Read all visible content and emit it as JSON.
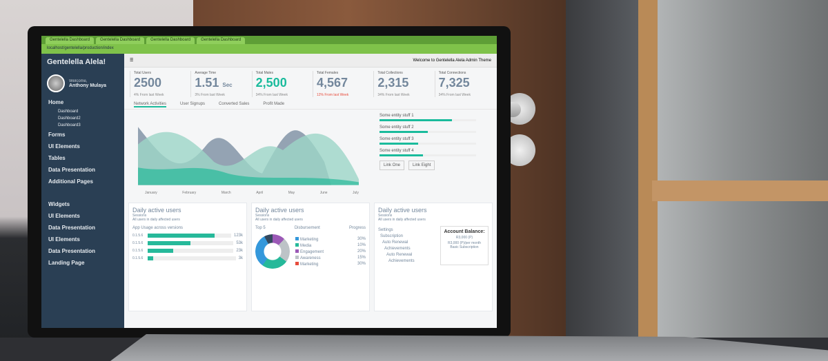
{
  "browser": {
    "url": "localhost/gentelella/production/index",
    "tabs": [
      "Gentelella Dashboard",
      "Gentelella Dashboard",
      "Gentelella Dashboard",
      "Gentelella Dashboard"
    ]
  },
  "sidebar": {
    "brand": "Gentelella Alela!",
    "welcome": "Welcome,",
    "user": "Anthony Mulaya",
    "items": [
      {
        "label": "Home"
      },
      {
        "label": "Dashboard"
      },
      {
        "label": "Dashboard2"
      },
      {
        "label": "Dashboard3"
      },
      {
        "label": "Forms"
      },
      {
        "label": "UI Elements"
      },
      {
        "label": "Tables"
      },
      {
        "label": "Data Presentation"
      },
      {
        "label": "Additional Pages"
      },
      {
        "label": "Widgets"
      },
      {
        "label": "UI Elements"
      },
      {
        "label": "Data Presentation"
      },
      {
        "label": "UI Elements"
      },
      {
        "label": "Data Presentation"
      },
      {
        "label": "Landing Page"
      }
    ]
  },
  "topbar": {
    "welcome": "Welcome to Gentelella Alela Admin Theme"
  },
  "stats": [
    {
      "label": "Total Users",
      "value": "2500",
      "unit": "",
      "change": "4% From last Week"
    },
    {
      "label": "Average Time",
      "value": "1.51",
      "unit": "Sec",
      "change": "3% From last Week"
    },
    {
      "label": "Total Males",
      "value": "2,500",
      "unit": "",
      "change": "34% From last Week"
    },
    {
      "label": "Total Females",
      "value": "4,567",
      "unit": "",
      "change": "12% From last Week"
    },
    {
      "label": "Total Collections",
      "value": "2,315",
      "unit": "",
      "change": "34% From last Week"
    },
    {
      "label": "Total Connections",
      "value": "7,325",
      "unit": "",
      "change": "34% From last Week"
    }
  ],
  "tabs": [
    "Network Activities",
    "User Signups",
    "Converted Sales",
    "Profit Made"
  ],
  "chart": {
    "months": [
      "January",
      "February",
      "March",
      "April",
      "May",
      "June",
      "July"
    ],
    "colors": [
      "#26b99a",
      "#73879c",
      "#9cd6c7"
    ]
  },
  "side_bars": [
    {
      "label": "Some entity stuff 1",
      "value": 0.75
    },
    {
      "label": "Some entity stuff 2",
      "value": 0.5
    },
    {
      "label": "Some entity stuff 3",
      "value": 0.4
    },
    {
      "label": "Some entity stuff 4",
      "value": 0.45
    }
  ],
  "links": [
    "Link One",
    "Link Eight"
  ],
  "panels": [
    {
      "title": "Daily active users",
      "subtitle": "Sessions",
      "note": "All users in daily affected users",
      "heading": "App Usage across versions",
      "rows": [
        {
          "ver": "0.1.5.6",
          "value": "123k",
          "pct": 0.8
        },
        {
          "ver": "0.1.5.6",
          "value": "53k",
          "pct": 0.5
        },
        {
          "ver": "0.1.5.6",
          "value": "23k",
          "pct": 0.3
        },
        {
          "ver": "0.1.5.6",
          "value": "3k",
          "pct": 0.06
        }
      ]
    },
    {
      "title": "Daily active users",
      "subtitle": "Sessions",
      "note": "All users in daily affected users",
      "cols": [
        "Top 5",
        "Disbursement",
        "Progress"
      ],
      "legend": [
        {
          "label": "Marketing",
          "value": "30%",
          "color": "#3498db"
        },
        {
          "label": "Media",
          "value": "10%",
          "color": "#26b99a"
        },
        {
          "label": "Engagement",
          "value": "20%",
          "color": "#9b59b6"
        },
        {
          "label": "Awareness",
          "value": "15%",
          "color": "#bdc3c7"
        },
        {
          "label": "Marketing",
          "value": "30%",
          "color": "#e74c3c"
        }
      ]
    },
    {
      "title": "Daily active users",
      "subtitle": "Sessions",
      "note": "All users in daily affected users",
      "list": [
        "Settings",
        "Subscription",
        "Auto Renewal",
        "Achievements",
        "Auto Renewal",
        "Achievements"
      ],
      "account": {
        "title": "Account Balance:",
        "line1": "R3,000 (P)",
        "line2": "R3,000 (P)/per month Basic Subscription"
      }
    }
  ]
}
